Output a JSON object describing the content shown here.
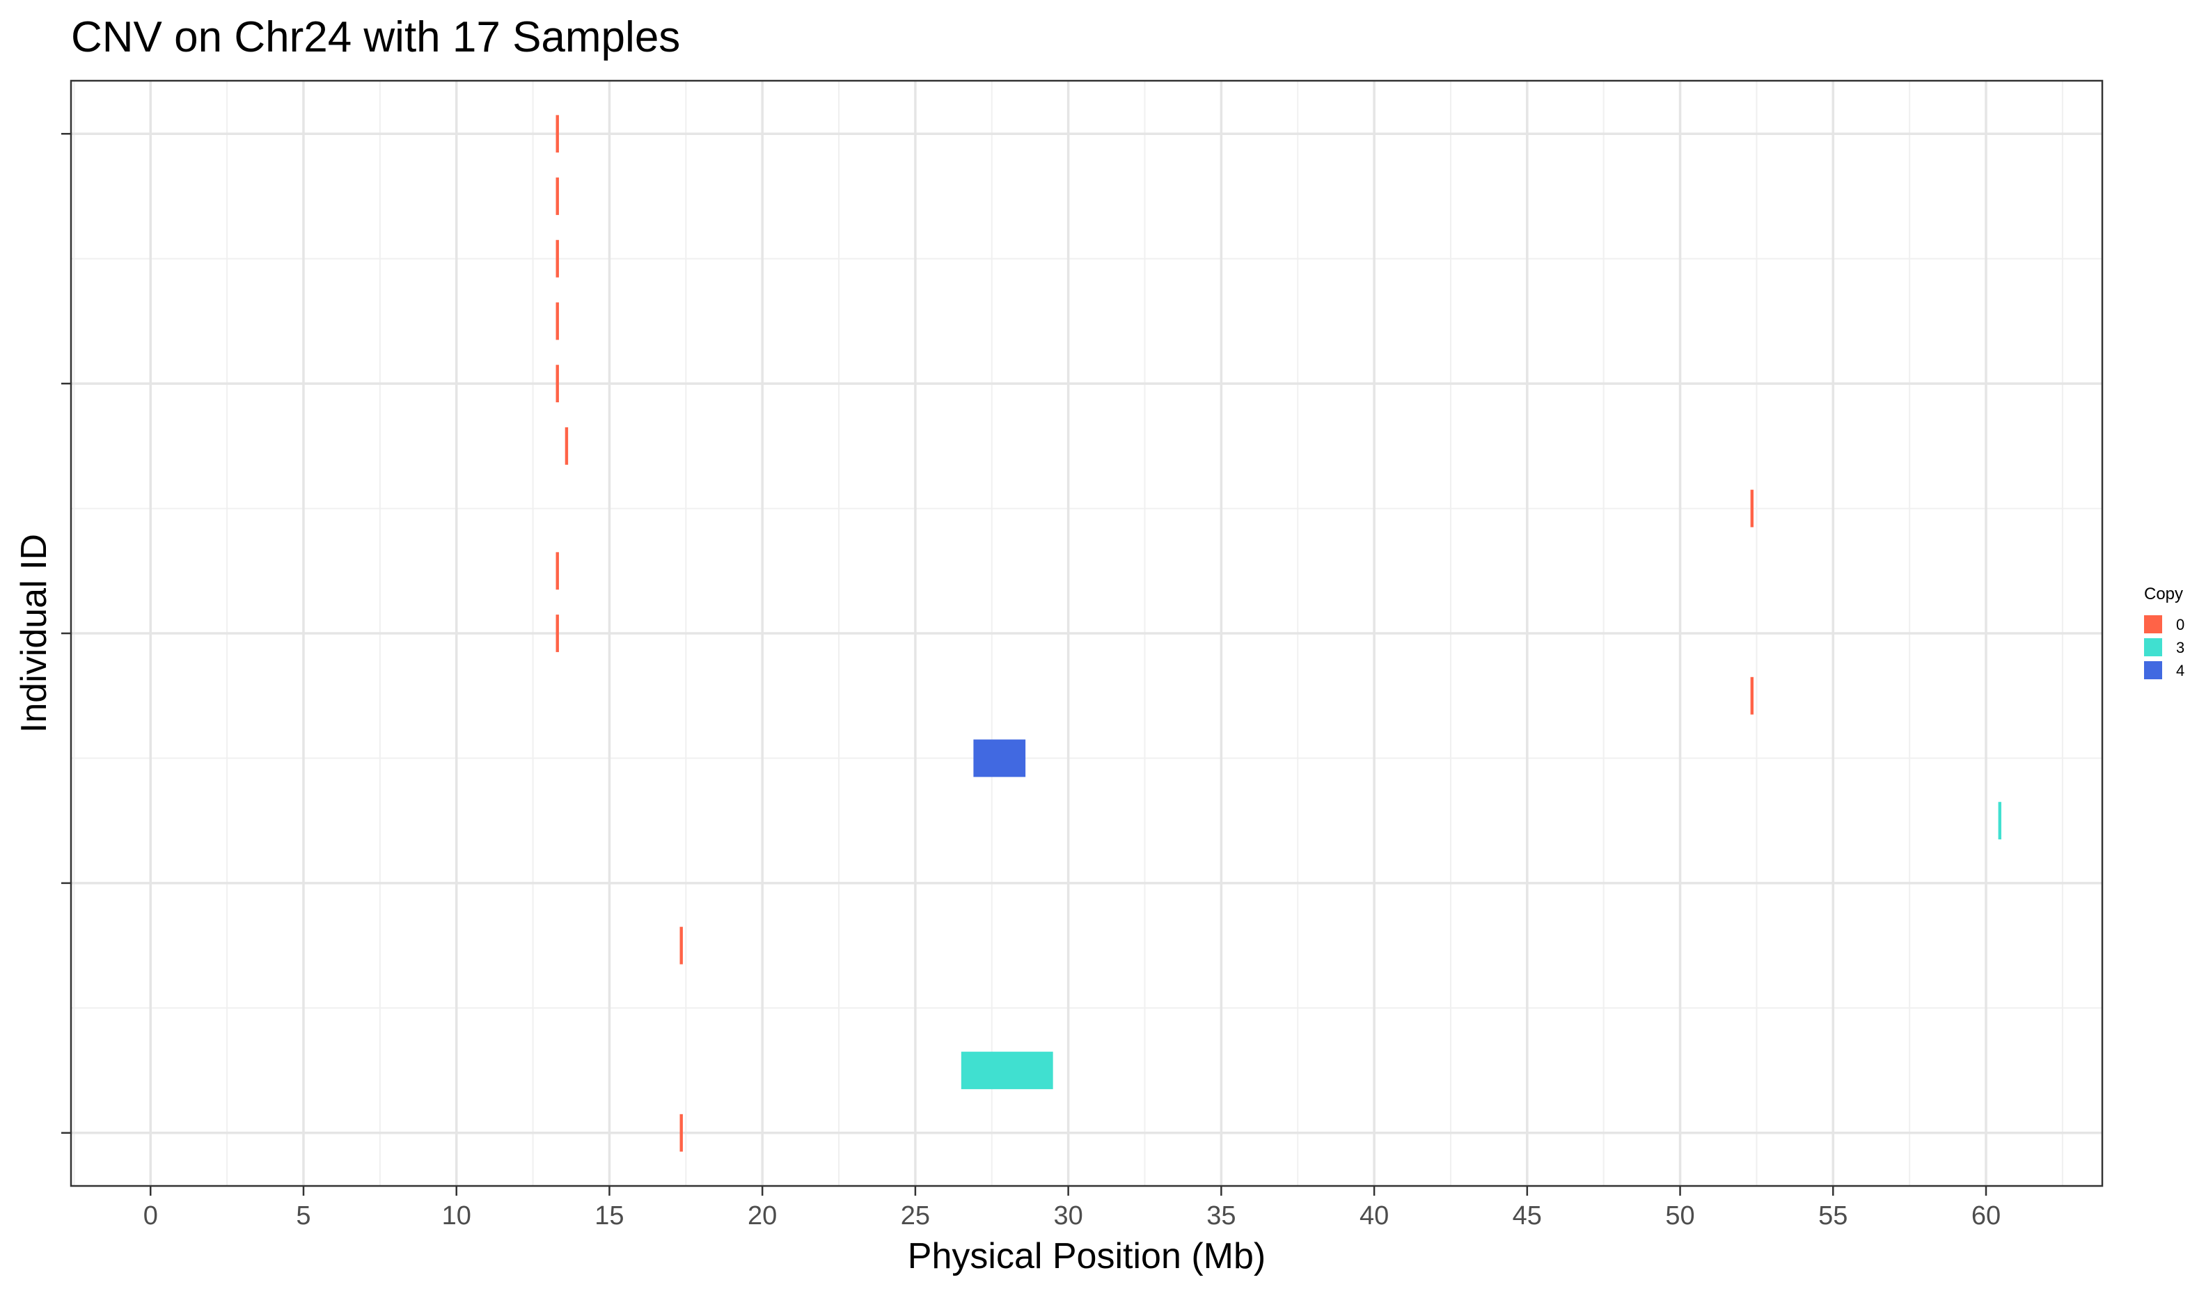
{
  "chart_data": {
    "type": "gantt-segments",
    "title": "CNV on Chr24 with 17 Samples",
    "xlabel": "Physical Position (Mb)",
    "ylabel": "Individual ID",
    "xlim": [
      -2.6,
      63.8
    ],
    "ylim": [
      0.15,
      17.85
    ],
    "x_ticks": [
      0,
      5,
      10,
      15,
      20,
      25,
      30,
      35,
      40,
      45,
      50,
      55,
      60
    ],
    "x_tick_labels": [
      "0",
      "5",
      "10",
      "15",
      "20",
      "25",
      "30",
      "35",
      "40",
      "45",
      "50",
      "55",
      "60"
    ],
    "y_ticks": [
      1,
      5,
      9,
      13,
      17
    ],
    "y_minor_ticks": [
      3,
      7,
      11,
      15
    ],
    "grid": true,
    "legend": {
      "title": "Copy",
      "position": "right",
      "entries": [
        {
          "label": "0",
          "color": "#FF6347"
        },
        {
          "label": "3",
          "color": "#40E0D0"
        },
        {
          "label": "4",
          "color": "#4169E1"
        }
      ]
    },
    "segments": [
      {
        "row": 17,
        "start": 13.25,
        "end": 13.35,
        "copy": "0"
      },
      {
        "row": 16,
        "start": 13.25,
        "end": 13.35,
        "copy": "0"
      },
      {
        "row": 15,
        "start": 13.25,
        "end": 13.35,
        "copy": "0"
      },
      {
        "row": 14,
        "start": 13.25,
        "end": 13.35,
        "copy": "0"
      },
      {
        "row": 13,
        "start": 13.25,
        "end": 13.35,
        "copy": "0"
      },
      {
        "row": 12,
        "start": 13.55,
        "end": 13.65,
        "copy": "0"
      },
      {
        "row": 11,
        "start": 52.3,
        "end": 52.4,
        "copy": "0"
      },
      {
        "row": 10,
        "start": 13.25,
        "end": 13.35,
        "copy": "0"
      },
      {
        "row": 9,
        "start": 13.25,
        "end": 13.35,
        "copy": "0"
      },
      {
        "row": 8,
        "start": 52.3,
        "end": 52.4,
        "copy": "0"
      },
      {
        "row": 7,
        "start": 26.9,
        "end": 28.6,
        "copy": "4"
      },
      {
        "row": 6,
        "start": 60.4,
        "end": 60.5,
        "copy": "3"
      },
      {
        "row": 4,
        "start": 17.3,
        "end": 17.4,
        "copy": "0"
      },
      {
        "row": 2,
        "start": 26.5,
        "end": 29.5,
        "copy": "3"
      },
      {
        "row": 1,
        "start": 17.3,
        "end": 17.4,
        "copy": "0"
      }
    ]
  }
}
